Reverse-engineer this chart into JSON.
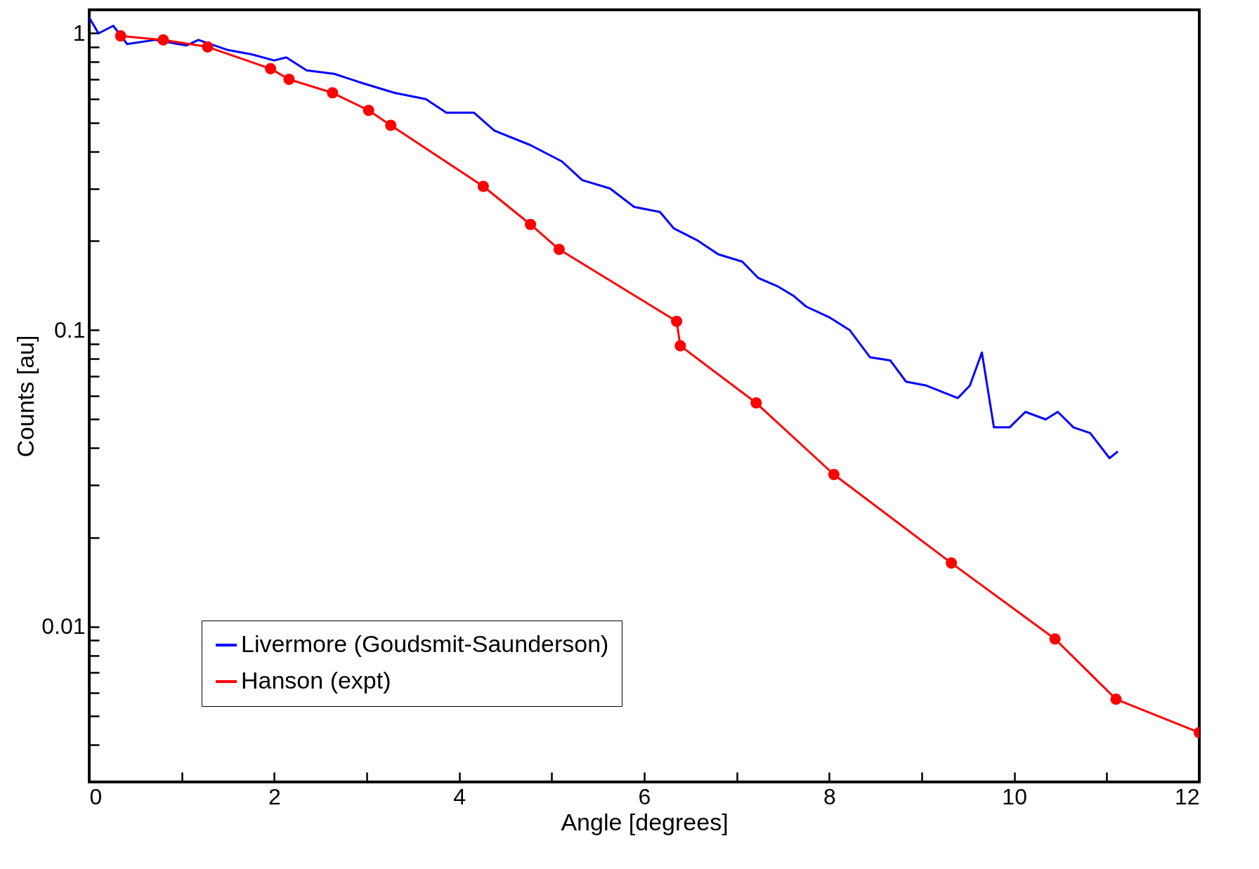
{
  "chart_data": {
    "type": "line",
    "xlabel": "Angle [degrees]",
    "ylabel": "Counts [au]",
    "log": "y",
    "legend": "bottom left",
    "grid": false,
    "xlim": [
      0,
      12
    ],
    "ylim": [
      0.003,
      1.2
    ],
    "xticks": [
      0,
      {
        "value": 1,
        "label": null
      },
      2,
      {
        "value": 3,
        "label": null
      },
      4,
      {
        "value": 5,
        "label": null
      },
      6,
      {
        "value": 7,
        "label": null
      },
      8,
      {
        "value": 9,
        "label": null
      },
      10,
      {
        "value": 11,
        "label": null
      },
      12
    ],
    "yticks": [
      {
        "value": 0.004,
        "label": null
      },
      {
        "value": 0.005,
        "label": null
      },
      {
        "value": 0.006,
        "label": null
      },
      {
        "value": 0.007,
        "label": null
      },
      {
        "value": 0.008,
        "label": null
      },
      {
        "value": 0.009,
        "label": null
      },
      0.01,
      {
        "value": 0.02,
        "label": null
      },
      {
        "value": 0.03,
        "label": null
      },
      {
        "value": 0.04,
        "label": null
      },
      {
        "value": 0.05,
        "label": null
      },
      {
        "value": 0.06,
        "label": null
      },
      {
        "value": 0.07,
        "label": null
      },
      {
        "value": 0.08,
        "label": null
      },
      {
        "value": 0.09,
        "label": null
      },
      0.1,
      {
        "value": 0.2,
        "label": null
      },
      {
        "value": 0.3,
        "label": null
      },
      {
        "value": 0.4,
        "label": null
      },
      {
        "value": 0.5,
        "label": null
      },
      {
        "value": 0.6,
        "label": null
      },
      {
        "value": 0.7,
        "label": null
      },
      {
        "value": 0.8,
        "label": null
      },
      {
        "value": 0.9,
        "label": null
      },
      1
    ],
    "series": [
      {
        "name": "Livermore (Goudsmit-Saunderson)",
        "color": "#0000ff",
        "marker": "none",
        "x": [
          0,
          0.1,
          0.26,
          0.41,
          0.71,
          1.05,
          1.18,
          1.49,
          1.75,
          2.0,
          2.13,
          2.35,
          2.65,
          2.95,
          3.3,
          3.64,
          3.86,
          4.16,
          4.38,
          4.77,
          5.11,
          5.33,
          5.63,
          5.89,
          6.17,
          6.32,
          6.58,
          6.8,
          7.06,
          7.23,
          7.45,
          7.62,
          7.75,
          8.01,
          8.22,
          8.44,
          8.66,
          8.83,
          9.05,
          9.39,
          9.52,
          9.65,
          9.78,
          9.95,
          10.12,
          10.34,
          10.47,
          10.64,
          10.82,
          11.03,
          11.12
        ],
        "values": [
          1.13,
          1.0,
          1.06,
          0.92,
          0.95,
          0.91,
          0.95,
          0.88,
          0.85,
          0.81,
          0.83,
          0.75,
          0.73,
          0.68,
          0.63,
          0.6,
          0.54,
          0.54,
          0.47,
          0.42,
          0.37,
          0.32,
          0.3,
          0.26,
          0.25,
          0.22,
          0.2,
          0.18,
          0.17,
          0.15,
          0.14,
          0.13,
          0.12,
          0.11,
          0.1,
          0.081,
          0.079,
          0.067,
          0.065,
          0.059,
          0.065,
          0.084,
          0.047,
          0.047,
          0.053,
          0.05,
          0.053,
          0.047,
          0.045,
          0.037,
          0.039
        ]
      },
      {
        "name": "Hanson (expt)",
        "color": "#ff0000",
        "marker": "circle",
        "x": [
          0.34,
          0.8,
          1.28,
          1.96,
          2.16,
          2.63,
          3.02,
          3.26,
          4.26,
          4.77,
          5.08,
          6.35,
          6.39,
          7.21,
          8.05,
          9.32,
          10.44,
          11.1,
          12
        ],
        "values": [
          0.98,
          0.95,
          0.9,
          0.76,
          0.7,
          0.63,
          0.55,
          0.49,
          0.305,
          0.227,
          0.187,
          0.107,
          0.0885,
          0.0568,
          0.0326,
          0.0164,
          0.0091,
          0.0057,
          0.0044
        ]
      }
    ]
  }
}
